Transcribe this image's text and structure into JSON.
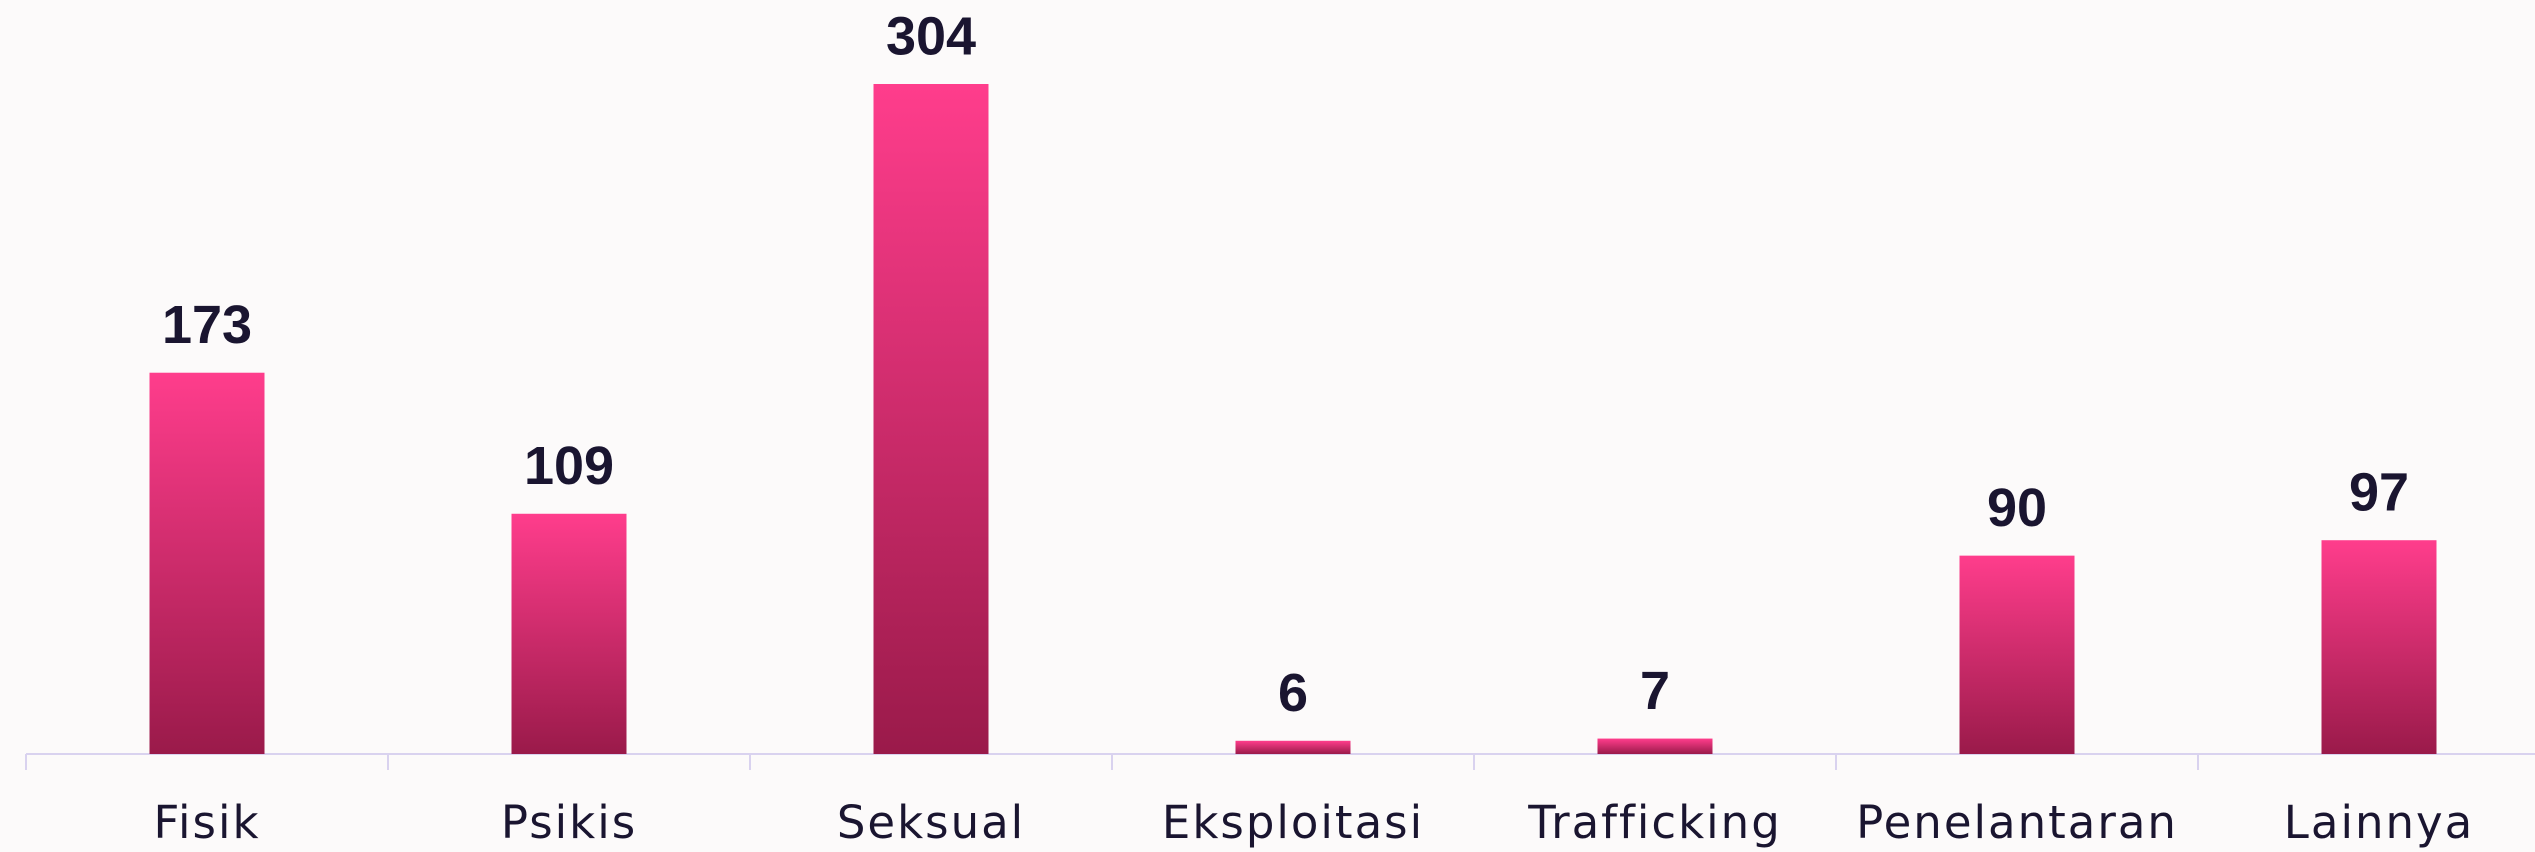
{
  "chart_data": {
    "type": "bar",
    "categories": [
      "Fisik",
      "Psikis",
      "Seksual",
      "Eksploitasi",
      "Trafficking",
      "Penelantaran",
      "Lainnya"
    ],
    "values": [
      173,
      109,
      304,
      6,
      7,
      90,
      97
    ],
    "gradient": [
      "#ff3d8c",
      "#9a1a4a"
    ],
    "ylim": [
      0,
      304
    ],
    "grid": false
  }
}
